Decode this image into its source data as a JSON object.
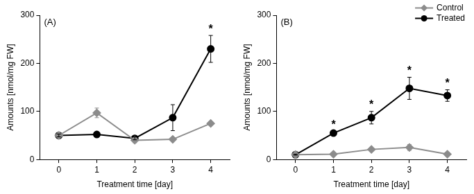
{
  "chart_data": [
    {
      "type": "line",
      "title": "(A)",
      "x_label": "Treatment time [day]",
      "y_label": "Amounts [nmol/mg FW]",
      "categories": [
        "0",
        "1",
        "2",
        "3",
        "4"
      ],
      "ylim": [
        0,
        300
      ],
      "yticks": [
        0,
        100,
        200,
        300
      ],
      "grid": false,
      "series": [
        {
          "name": "Control",
          "color": "#8c8c8c",
          "marker": "diamond",
          "values": [
            50,
            97,
            40,
            42,
            75
          ],
          "errors": [
            0,
            10,
            5,
            3,
            2
          ]
        },
        {
          "name": "Treated",
          "color": "#000000",
          "marker": "circle",
          "values": [
            50,
            52,
            44,
            87,
            230
          ],
          "errors": [
            3,
            2,
            3,
            27,
            28
          ]
        }
      ],
      "annotations": [
        {
          "category": "4",
          "text": "*"
        }
      ]
    },
    {
      "type": "line",
      "title": "(B)",
      "x_label": "Treatment time [day]",
      "y_label": "Amounts [nmol/mg FW]",
      "categories": [
        "0",
        "1",
        "2",
        "3",
        "4"
      ],
      "ylim": [
        0,
        300
      ],
      "yticks": [
        0,
        100,
        200,
        300
      ],
      "grid": false,
      "legend": "upper right",
      "series": [
        {
          "name": "Control",
          "color": "#8c8c8c",
          "marker": "diamond",
          "values": [
            10,
            11,
            21,
            25,
            11
          ],
          "errors": [
            1,
            1,
            3,
            6,
            2
          ]
        },
        {
          "name": "Treated",
          "color": "#000000",
          "marker": "circle",
          "values": [
            10,
            55,
            87,
            148,
            133
          ],
          "errors": [
            1,
            3,
            13,
            23,
            12
          ]
        }
      ],
      "annotations": [
        {
          "category": "1",
          "text": "*"
        },
        {
          "category": "2",
          "text": "*"
        },
        {
          "category": "3",
          "text": "*"
        },
        {
          "category": "4",
          "text": "*"
        }
      ]
    }
  ]
}
